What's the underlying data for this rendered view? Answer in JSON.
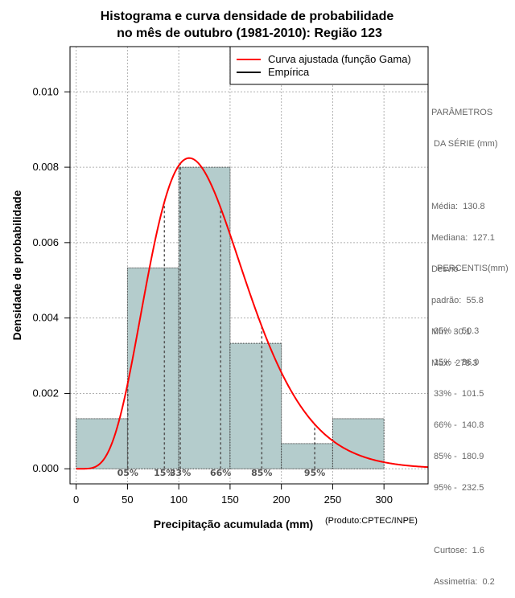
{
  "chart_data": {
    "type": "bar",
    "title_line1": "Histograma e curva densidade de probabilidade",
    "title_line2": "no mês de outubro (1981-2010): Região 123",
    "xlabel": "Precipitação acumulada (mm)",
    "ylabel": "Densidade de probabilidade",
    "credit": "(Produto:CPTEC/INPE)",
    "xlim": [
      -6,
      343
    ],
    "ylim": [
      -0.0004,
      0.0112
    ],
    "x_ticks": [
      0,
      50,
      100,
      150,
      200,
      250,
      300
    ],
    "y_ticks": [
      0.0,
      0.002,
      0.004,
      0.006,
      0.008,
      0.01
    ],
    "y_tick_labels": [
      "0.000",
      "0.002",
      "0.004",
      "0.006",
      "0.008",
      "0.010"
    ],
    "grid": true,
    "bins": [
      {
        "x0": 0,
        "x1": 50,
        "density": 0.00133
      },
      {
        "x0": 50,
        "x1": 100,
        "density": 0.00533
      },
      {
        "x0": 100,
        "x1": 150,
        "density": 0.008
      },
      {
        "x0": 150,
        "x1": 200,
        "density": 0.00333
      },
      {
        "x0": 200,
        "x1": 250,
        "density": 0.00067
      },
      {
        "x0": 250,
        "x1": 300,
        "density": 0.00133
      }
    ],
    "gamma_fit": {
      "shape": 6.35,
      "scale": 20.6
    },
    "percentile_markers": [
      {
        "label": "05%",
        "x": 50.3
      },
      {
        "label": "15%",
        "x": 86.0
      },
      {
        "label": "33%",
        "x": 101.5
      },
      {
        "label": "66%",
        "x": 140.8
      },
      {
        "label": "85%",
        "x": 180.9
      },
      {
        "label": "95%",
        "x": 232.5
      }
    ],
    "legend": [
      {
        "label": "Curva ajustada (função Gama)",
        "color": "#ff0000"
      },
      {
        "label": "Empírica",
        "color": "#000000"
      }
    ],
    "legend_position": "top-right"
  },
  "colors": {
    "bar_fill": "#b4cccc",
    "curve": "#ff0000",
    "grid": "#b0b0b0",
    "percentile_line": "#555555"
  },
  "stats": {
    "header1": "PARÂMETROS",
    "header2": " DA SÉRIE (mm)",
    "media": "Média:  130.8",
    "mediana": "Mediana:  127.1",
    "desvio1": "Desvio",
    "desvio2": "padrão:  55.8",
    "min": "Mín:  30.1",
    "max": "Máx:  278.3"
  },
  "percentis": {
    "header": "PERCENTIS(mm)",
    "rows": [
      "05% -  50.3",
      "15% -  86.0",
      "33% -  101.5",
      "66% -  140.8",
      "85% -  180.9",
      "95% -  232.5"
    ],
    "curtose": "Curtose:  1.6",
    "assimetria": "Assimetria:  0.2"
  }
}
